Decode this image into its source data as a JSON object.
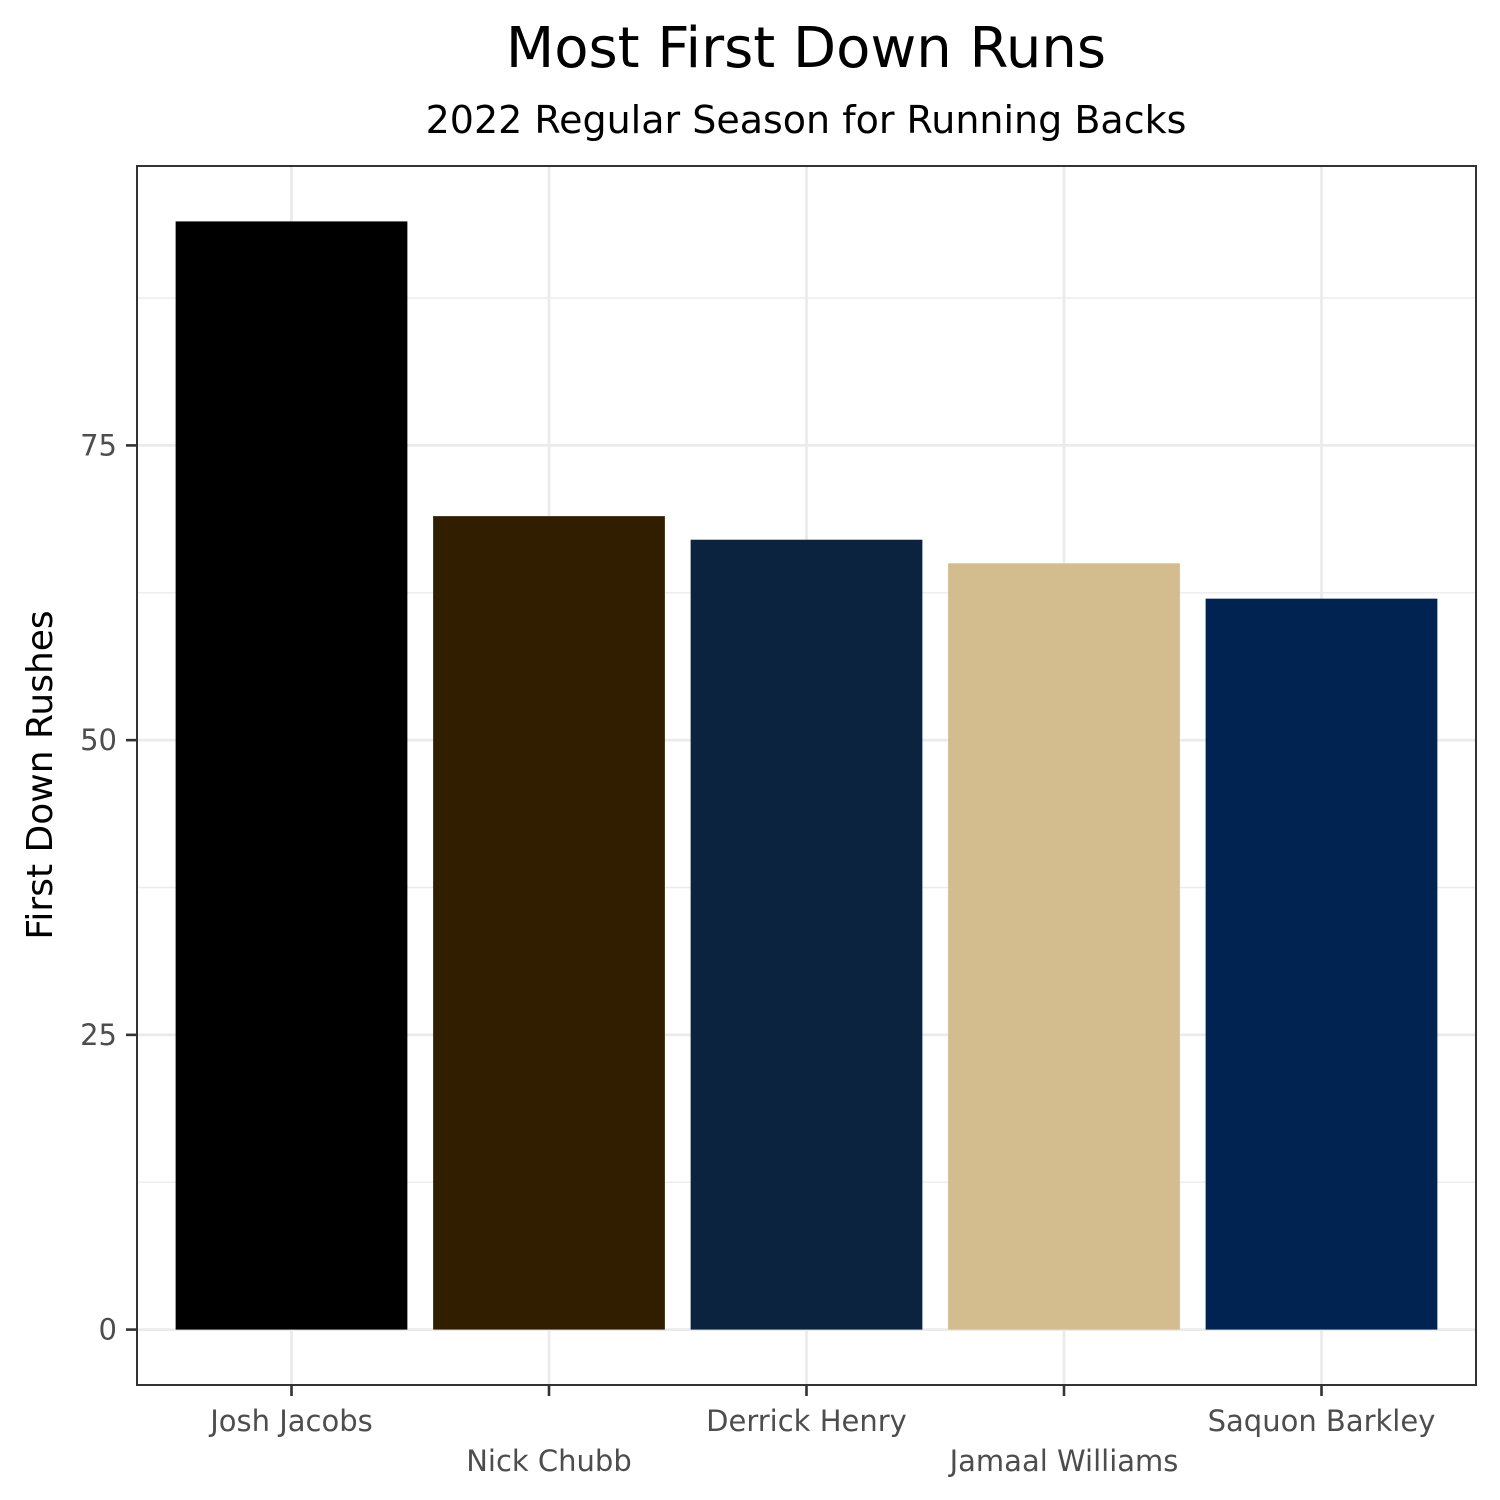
{
  "chart_data": {
    "type": "bar",
    "title": "Most First Down Runs",
    "subtitle": "2022 Regular Season for Running Backs",
    "xlabel": "",
    "ylabel": "First  Down  Rushes",
    "categories": [
      "Josh Jacobs",
      "Nick Chubb",
      "Derrick Henry",
      "Jamaal Williams",
      "Saquon Barkley"
    ],
    "values": [
      94,
      69,
      67,
      65,
      62
    ],
    "colors": [
      "#000000",
      "#311d00",
      "#0c2340",
      "#d3bc8d",
      "#012352"
    ],
    "ylim": [
      -4.7,
      98.7
    ],
    "yticks": [
      0,
      25,
      50,
      75
    ],
    "grid": true,
    "legend": "none"
  }
}
